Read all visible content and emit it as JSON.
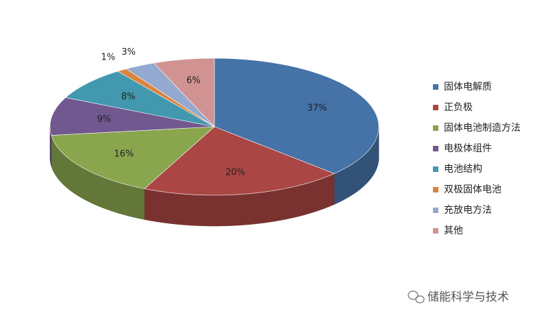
{
  "chart_data": {
    "type": "pie",
    "categories": [
      "固体电解质",
      "正负极",
      "固体电池制造方法",
      "电极体组件",
      "电池结构",
      "双极固体电池",
      "充放电方法",
      "其他"
    ],
    "values": [
      37,
      20,
      16,
      9,
      8,
      1,
      3,
      6
    ],
    "value_labels": [
      "37%",
      "20%",
      "16%",
      "9%",
      "8%",
      "1%",
      "3%",
      "6%"
    ],
    "colors": [
      "#4572a7",
      "#aa4643",
      "#89a54e",
      "#71588f",
      "#4198af",
      "#db843d",
      "#93a9cf",
      "#d19392"
    ],
    "legend": "right"
  },
  "watermark": "储能科学与技术"
}
